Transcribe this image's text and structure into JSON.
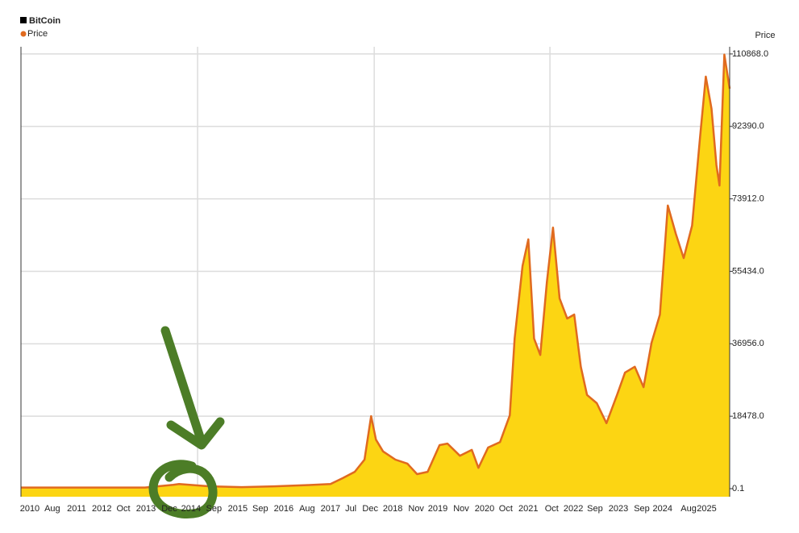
{
  "chart_data": {
    "type": "area",
    "title": "BitCoin",
    "y_label": "Price",
    "xlim": [
      2009.96,
      2026.01
    ],
    "ylim": [
      -2053,
      112700
    ],
    "yticks": [
      0.1,
      {
        "value": 18478,
        "label": "18478.0"
      },
      {
        "value": 36956,
        "label": "36956.0"
      },
      {
        "value": 55434,
        "label": "55434.0"
      },
      {
        "value": 73912,
        "label": "73912.0"
      },
      {
        "value": 92390,
        "label": "92390.0"
      },
      {
        "value": 110868,
        "label": "110868.0"
      }
    ],
    "xticks": [
      {
        "value": 2010.16,
        "label": "2010"
      },
      {
        "value": 2010.67,
        "label": "Aug"
      },
      {
        "value": 2011.22,
        "label": "2011"
      },
      {
        "value": 2011.79,
        "label": "2012"
      },
      {
        "value": 2012.28,
        "label": "Oct"
      },
      {
        "value": 2012.79,
        "label": "2013"
      },
      {
        "value": 2013.32,
        "label": "Dec"
      },
      {
        "value": 2013.81,
        "label": "2014"
      },
      {
        "value": 2014.33,
        "label": "Sep"
      },
      {
        "value": 2014.87,
        "label": "2015"
      },
      {
        "value": 2015.38,
        "label": "Sep"
      },
      {
        "value": 2015.91,
        "label": "2016"
      },
      {
        "value": 2016.44,
        "label": "Aug"
      },
      {
        "value": 2016.97,
        "label": "2017"
      },
      {
        "value": 2017.43,
        "label": "Jul"
      },
      {
        "value": 2017.87,
        "label": "Dec"
      },
      {
        "value": 2018.38,
        "label": "2018"
      },
      {
        "value": 2018.91,
        "label": "Nov"
      },
      {
        "value": 2019.4,
        "label": "2019"
      },
      {
        "value": 2019.93,
        "label": "Nov"
      },
      {
        "value": 2020.46,
        "label": "2020"
      },
      {
        "value": 2020.94,
        "label": "Oct"
      },
      {
        "value": 2021.45,
        "label": "2021"
      },
      {
        "value": 2021.98,
        "label": "Oct"
      },
      {
        "value": 2022.47,
        "label": "2022"
      },
      {
        "value": 2022.96,
        "label": "Sep"
      },
      {
        "value": 2023.49,
        "label": "2023"
      },
      {
        "value": 2024.02,
        "label": "Sep"
      },
      {
        "value": 2024.49,
        "label": "2024"
      },
      {
        "value": 2025.08,
        "label": "Aug"
      },
      {
        "value": 2025.49,
        "label": "2025"
      }
    ],
    "xgrid_lines": [
      2013.96,
      2017.96,
      2021.94
    ],
    "grid": true,
    "x": [
      2009.96,
      2012.77,
      2013.41,
      2013.54,
      2014.23,
      2014.96,
      2015.7,
      2016.43,
      2016.97,
      2017.25,
      2017.52,
      2017.74,
      2017.89,
      2018.0,
      2018.16,
      2018.44,
      2018.71,
      2018.93,
      2019.17,
      2019.44,
      2019.62,
      2019.9,
      2020.17,
      2020.32,
      2020.54,
      2020.81,
      2021.03,
      2021.14,
      2021.32,
      2021.45,
      2021.58,
      2021.72,
      2021.87,
      2022.01,
      2022.16,
      2022.33,
      2022.49,
      2022.64,
      2022.78,
      2023.0,
      2023.22,
      2023.46,
      2023.64,
      2023.86,
      2024.06,
      2024.24,
      2024.43,
      2024.61,
      2024.79,
      2024.97,
      2025.16,
      2025.34,
      2025.47,
      2025.6,
      2025.71,
      2025.78,
      2025.89,
      2026.01
    ],
    "series": [
      {
        "name": "Price",
        "color": "#e06a1f",
        "fill": "#fcd513",
        "values": [
          300,
          300,
          1000,
          1200,
          600,
          400,
          600,
          900,
          1200,
          2700,
          4300,
          7400,
          18500,
          12500,
          9500,
          7400,
          6400,
          3700,
          4300,
          11100,
          11500,
          8400,
          9900,
          5300,
          10500,
          11900,
          18700,
          38300,
          56800,
          63600,
          38300,
          34100,
          52700,
          66600,
          48500,
          43400,
          44400,
          31100,
          23900,
          21800,
          16700,
          23900,
          29600,
          31100,
          25900,
          37200,
          44400,
          72200,
          65000,
          58800,
          67100,
          89700,
          105100,
          96900,
          82500,
          77300,
          110700,
          102000
        ]
      }
    ]
  }
}
